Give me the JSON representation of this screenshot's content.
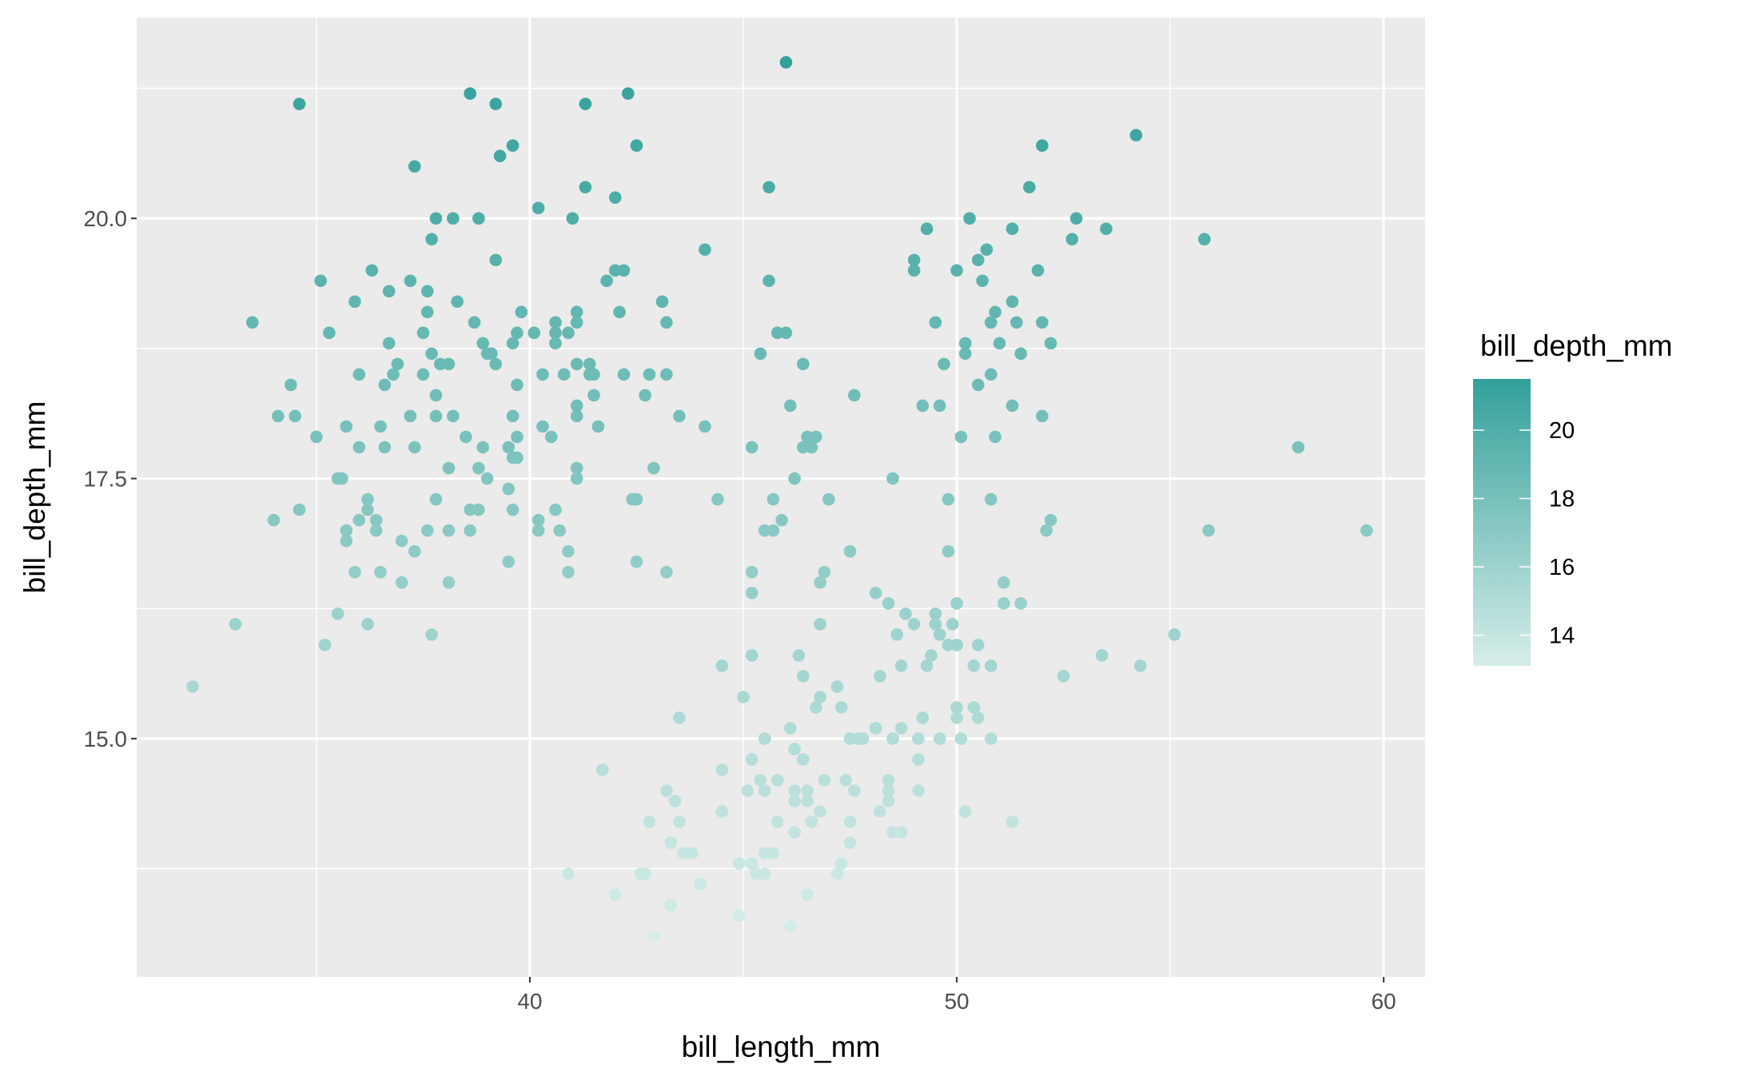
{
  "chart_data": {
    "type": "scatter",
    "title": "",
    "xlabel": "bill_length_mm",
    "ylabel": "bill_depth_mm",
    "xlim": [
      30.79,
      60.97
    ],
    "ylim": [
      12.71,
      21.93
    ],
    "x_ticks": [
      40,
      50,
      60
    ],
    "x_tick_labels": [
      "40",
      "50",
      "60"
    ],
    "y_ticks": [
      15,
      17.5,
      20
    ],
    "y_tick_labels": [
      "15.0",
      "17.5",
      "20.0"
    ],
    "grid": true,
    "panel_background": "#ebebeb",
    "grid_color": "#ffffff",
    "color_variable": "bill_depth_mm",
    "legend": {
      "title": "bill_depth_mm",
      "placement": "right",
      "range": [
        13.1,
        21.5
      ],
      "ticks": [
        14,
        16,
        18,
        20
      ],
      "tick_labels": [
        "14",
        "16",
        "18",
        "20"
      ],
      "low_color": "#d6ede9",
      "high_color": "#33a09a"
    },
    "points": [
      [
        46.0,
        21.5
      ],
      [
        38.6,
        21.2
      ],
      [
        42.3,
        21.2
      ],
      [
        34.6,
        21.1
      ],
      [
        39.2,
        21.1
      ],
      [
        41.3,
        21.1
      ],
      [
        54.2,
        20.8
      ],
      [
        39.6,
        20.7
      ],
      [
        42.5,
        20.7
      ],
      [
        52.0,
        20.7
      ],
      [
        39.3,
        20.6
      ],
      [
        37.3,
        20.5
      ],
      [
        41.3,
        20.3
      ],
      [
        45.6,
        20.3
      ],
      [
        51.7,
        20.3
      ],
      [
        42.0,
        20.2
      ],
      [
        40.2,
        20.1
      ],
      [
        37.8,
        20.0
      ],
      [
        38.2,
        20.0
      ],
      [
        38.8,
        20.0
      ],
      [
        41.0,
        20.0
      ],
      [
        50.3,
        20.0
      ],
      [
        52.8,
        20.0
      ],
      [
        49.3,
        19.9
      ],
      [
        51.3,
        19.9
      ],
      [
        53.5,
        19.9
      ],
      [
        37.7,
        19.8
      ],
      [
        52.7,
        19.8
      ],
      [
        55.8,
        19.8
      ],
      [
        44.1,
        19.7
      ],
      [
        50.7,
        19.7
      ],
      [
        39.2,
        19.6
      ],
      [
        49.0,
        19.6
      ],
      [
        50.5,
        19.6
      ],
      [
        36.3,
        19.5
      ],
      [
        42.0,
        19.5
      ],
      [
        42.2,
        19.5
      ],
      [
        49.0,
        19.5
      ],
      [
        50.0,
        19.5
      ],
      [
        51.9,
        19.5
      ],
      [
        35.1,
        19.4
      ],
      [
        37.2,
        19.4
      ],
      [
        41.8,
        19.4
      ],
      [
        45.6,
        19.4
      ],
      [
        50.6,
        19.4
      ],
      [
        36.7,
        19.3
      ],
      [
        37.6,
        19.3
      ],
      [
        35.9,
        19.2
      ],
      [
        38.3,
        19.2
      ],
      [
        43.1,
        19.2
      ],
      [
        51.3,
        19.2
      ],
      [
        37.6,
        19.1
      ],
      [
        39.8,
        19.1
      ],
      [
        41.1,
        19.1
      ],
      [
        42.1,
        19.1
      ],
      [
        50.9,
        19.1
      ],
      [
        33.5,
        19.0
      ],
      [
        38.7,
        19.0
      ],
      [
        40.6,
        19.0
      ],
      [
        41.1,
        19.0
      ],
      [
        43.2,
        19.0
      ],
      [
        49.5,
        19.0
      ],
      [
        50.8,
        19.0
      ],
      [
        51.4,
        19.0
      ],
      [
        52.0,
        19.0
      ],
      [
        35.3,
        18.9
      ],
      [
        37.5,
        18.9
      ],
      [
        39.7,
        18.9
      ],
      [
        40.1,
        18.9
      ],
      [
        40.6,
        18.9
      ],
      [
        40.9,
        18.9
      ],
      [
        45.8,
        18.9
      ],
      [
        46.0,
        18.9
      ],
      [
        36.7,
        18.8
      ],
      [
        38.9,
        18.8
      ],
      [
        39.6,
        18.8
      ],
      [
        40.6,
        18.8
      ],
      [
        50.2,
        18.8
      ],
      [
        51.0,
        18.8
      ],
      [
        52.2,
        18.8
      ],
      [
        37.7,
        18.7
      ],
      [
        39.0,
        18.7
      ],
      [
        39.1,
        18.7
      ],
      [
        45.4,
        18.7
      ],
      [
        50.2,
        18.7
      ],
      [
        51.5,
        18.7
      ],
      [
        36.9,
        18.6
      ],
      [
        37.9,
        18.6
      ],
      [
        38.1,
        18.6
      ],
      [
        39.2,
        18.6
      ],
      [
        41.1,
        18.6
      ],
      [
        41.4,
        18.6
      ],
      [
        46.4,
        18.6
      ],
      [
        49.7,
        18.6
      ],
      [
        36.0,
        18.5
      ],
      [
        36.8,
        18.5
      ],
      [
        37.5,
        18.5
      ],
      [
        40.3,
        18.5
      ],
      [
        40.8,
        18.5
      ],
      [
        41.4,
        18.5
      ],
      [
        41.5,
        18.5
      ],
      [
        42.2,
        18.5
      ],
      [
        42.8,
        18.5
      ],
      [
        43.2,
        18.5
      ],
      [
        50.8,
        18.5
      ],
      [
        34.4,
        18.4
      ],
      [
        36.6,
        18.4
      ],
      [
        39.7,
        18.4
      ],
      [
        50.5,
        18.4
      ],
      [
        37.8,
        18.3
      ],
      [
        41.5,
        18.3
      ],
      [
        42.7,
        18.3
      ],
      [
        47.6,
        18.3
      ],
      [
        41.1,
        18.2
      ],
      [
        46.1,
        18.2
      ],
      [
        49.2,
        18.2
      ],
      [
        49.6,
        18.2
      ],
      [
        51.3,
        18.2
      ],
      [
        34.1,
        18.1
      ],
      [
        34.5,
        18.1
      ],
      [
        37.2,
        18.1
      ],
      [
        37.8,
        18.1
      ],
      [
        38.2,
        18.1
      ],
      [
        39.6,
        18.1
      ],
      [
        41.1,
        18.1
      ],
      [
        43.5,
        18.1
      ],
      [
        52.0,
        18.1
      ],
      [
        35.7,
        18.0
      ],
      [
        36.5,
        18.0
      ],
      [
        40.3,
        18.0
      ],
      [
        41.6,
        18.0
      ],
      [
        44.1,
        18.0
      ],
      [
        35.0,
        17.9
      ],
      [
        38.5,
        17.9
      ],
      [
        39.7,
        17.9
      ],
      [
        40.5,
        17.9
      ],
      [
        46.5,
        17.9
      ],
      [
        46.7,
        17.9
      ],
      [
        50.1,
        17.9
      ],
      [
        50.9,
        17.9
      ],
      [
        36.0,
        17.8
      ],
      [
        36.6,
        17.8
      ],
      [
        37.3,
        17.8
      ],
      [
        38.9,
        17.8
      ],
      [
        39.5,
        17.8
      ],
      [
        45.2,
        17.8
      ],
      [
        46.4,
        17.8
      ],
      [
        46.6,
        17.8
      ],
      [
        58.0,
        17.8
      ],
      [
        39.6,
        17.7
      ],
      [
        39.7,
        17.7
      ],
      [
        38.1,
        17.6
      ],
      [
        38.8,
        17.6
      ],
      [
        41.1,
        17.6
      ],
      [
        42.9,
        17.6
      ],
      [
        35.5,
        17.5
      ],
      [
        35.6,
        17.5
      ],
      [
        39.0,
        17.5
      ],
      [
        41.1,
        17.5
      ],
      [
        46.2,
        17.5
      ],
      [
        48.5,
        17.5
      ],
      [
        39.5,
        17.4
      ],
      [
        36.2,
        17.3
      ],
      [
        37.8,
        17.3
      ],
      [
        42.4,
        17.3
      ],
      [
        42.5,
        17.3
      ],
      [
        44.4,
        17.3
      ],
      [
        45.7,
        17.3
      ],
      [
        47.0,
        17.3
      ],
      [
        49.8,
        17.3
      ],
      [
        50.8,
        17.3
      ],
      [
        34.6,
        17.2
      ],
      [
        36.2,
        17.2
      ],
      [
        38.6,
        17.2
      ],
      [
        38.8,
        17.2
      ],
      [
        39.6,
        17.2
      ],
      [
        40.6,
        17.2
      ],
      [
        34.0,
        17.1
      ],
      [
        36.0,
        17.1
      ],
      [
        36.4,
        17.1
      ],
      [
        40.2,
        17.1
      ],
      [
        45.9,
        17.1
      ],
      [
        52.2,
        17.1
      ],
      [
        35.7,
        17.0
      ],
      [
        36.4,
        17.0
      ],
      [
        37.6,
        17.0
      ],
      [
        38.1,
        17.0
      ],
      [
        38.6,
        17.0
      ],
      [
        40.2,
        17.0
      ],
      [
        40.7,
        17.0
      ],
      [
        45.5,
        17.0
      ],
      [
        45.7,
        17.0
      ],
      [
        52.1,
        17.0
      ],
      [
        55.9,
        17.0
      ],
      [
        59.6,
        17.0
      ],
      [
        35.7,
        16.9
      ],
      [
        37.0,
        16.9
      ],
      [
        37.3,
        16.8
      ],
      [
        40.9,
        16.8
      ],
      [
        47.5,
        16.8
      ],
      [
        49.8,
        16.8
      ],
      [
        39.5,
        16.7
      ],
      [
        42.5,
        16.7
      ],
      [
        35.9,
        16.6
      ],
      [
        36.5,
        16.6
      ],
      [
        40.9,
        16.6
      ],
      [
        43.2,
        16.6
      ],
      [
        45.2,
        16.6
      ],
      [
        46.9,
        16.6
      ],
      [
        37.0,
        16.5
      ],
      [
        38.1,
        16.5
      ],
      [
        46.8,
        16.5
      ],
      [
        51.1,
        16.5
      ],
      [
        45.2,
        16.4
      ],
      [
        48.1,
        16.4
      ],
      [
        48.4,
        16.3
      ],
      [
        50.0,
        16.3
      ],
      [
        51.1,
        16.3
      ],
      [
        51.5,
        16.3
      ],
      [
        35.5,
        16.2
      ],
      [
        48.8,
        16.2
      ],
      [
        49.5,
        16.2
      ],
      [
        33.1,
        16.1
      ],
      [
        36.2,
        16.1
      ],
      [
        46.8,
        16.1
      ],
      [
        49.0,
        16.1
      ],
      [
        49.9,
        16.1
      ],
      [
        49.5,
        16.1
      ],
      [
        37.7,
        16.0
      ],
      [
        48.6,
        16.0
      ],
      [
        49.6,
        16.0
      ],
      [
        55.1,
        16.0
      ],
      [
        35.2,
        15.9
      ],
      [
        49.8,
        15.9
      ],
      [
        50.0,
        15.9
      ],
      [
        50.5,
        15.9
      ],
      [
        45.2,
        15.8
      ],
      [
        46.3,
        15.8
      ],
      [
        49.4,
        15.8
      ],
      [
        53.4,
        15.8
      ],
      [
        44.5,
        15.7
      ],
      [
        48.7,
        15.7
      ],
      [
        49.3,
        15.7
      ],
      [
        50.4,
        15.7
      ],
      [
        50.8,
        15.7
      ],
      [
        54.3,
        15.7
      ],
      [
        46.4,
        15.6
      ],
      [
        48.2,
        15.6
      ],
      [
        52.5,
        15.6
      ],
      [
        32.1,
        15.5
      ],
      [
        47.2,
        15.5
      ],
      [
        45.0,
        15.4
      ],
      [
        46.8,
        15.4
      ],
      [
        46.7,
        15.3
      ],
      [
        47.3,
        15.3
      ],
      [
        50.0,
        15.3
      ],
      [
        50.4,
        15.3
      ],
      [
        43.5,
        15.2
      ],
      [
        49.2,
        15.2
      ],
      [
        50.0,
        15.2
      ],
      [
        50.5,
        15.2
      ],
      [
        46.1,
        15.1
      ],
      [
        48.1,
        15.1
      ],
      [
        48.7,
        15.1
      ],
      [
        45.5,
        15.0
      ],
      [
        47.5,
        15.0
      ],
      [
        47.7,
        15.0
      ],
      [
        47.8,
        15.0
      ],
      [
        48.5,
        15.0
      ],
      [
        49.1,
        15.0
      ],
      [
        49.6,
        15.0
      ],
      [
        50.1,
        15.0
      ],
      [
        50.8,
        15.0
      ],
      [
        46.2,
        14.9
      ],
      [
        45.2,
        14.8
      ],
      [
        46.4,
        14.8
      ],
      [
        49.1,
        14.8
      ],
      [
        41.7,
        14.7
      ],
      [
        44.5,
        14.7
      ],
      [
        45.4,
        14.6
      ],
      [
        45.8,
        14.6
      ],
      [
        46.9,
        14.6
      ],
      [
        47.4,
        14.6
      ],
      [
        48.4,
        14.6
      ],
      [
        43.2,
        14.5
      ],
      [
        45.1,
        14.5
      ],
      [
        45.5,
        14.5
      ],
      [
        46.2,
        14.5
      ],
      [
        46.5,
        14.5
      ],
      [
        47.6,
        14.5
      ],
      [
        48.4,
        14.5
      ],
      [
        49.1,
        14.5
      ],
      [
        43.4,
        14.4
      ],
      [
        46.2,
        14.4
      ],
      [
        46.5,
        14.4
      ],
      [
        48.4,
        14.4
      ],
      [
        44.5,
        14.3
      ],
      [
        46.8,
        14.3
      ],
      [
        48.2,
        14.3
      ],
      [
        50.2,
        14.3
      ],
      [
        42.8,
        14.2
      ],
      [
        43.5,
        14.2
      ],
      [
        45.8,
        14.2
      ],
      [
        46.6,
        14.2
      ],
      [
        47.5,
        14.2
      ],
      [
        51.3,
        14.2
      ],
      [
        46.2,
        14.1
      ],
      [
        48.5,
        14.1
      ],
      [
        48.7,
        14.1
      ],
      [
        43.3,
        14.0
      ],
      [
        47.5,
        14.0
      ],
      [
        43.6,
        13.9
      ],
      [
        43.8,
        13.9
      ],
      [
        45.5,
        13.9
      ],
      [
        45.7,
        13.9
      ],
      [
        44.9,
        13.8
      ],
      [
        45.2,
        13.8
      ],
      [
        47.3,
        13.8
      ],
      [
        40.9,
        13.7
      ],
      [
        42.6,
        13.7
      ],
      [
        42.7,
        13.7
      ],
      [
        45.3,
        13.7
      ],
      [
        45.5,
        13.7
      ],
      [
        47.2,
        13.7
      ],
      [
        44.0,
        13.6
      ],
      [
        42.0,
        13.5
      ],
      [
        46.5,
        13.5
      ],
      [
        43.3,
        13.4
      ],
      [
        44.9,
        13.3
      ],
      [
        46.1,
        13.2
      ],
      [
        42.9,
        13.1
      ]
    ]
  }
}
